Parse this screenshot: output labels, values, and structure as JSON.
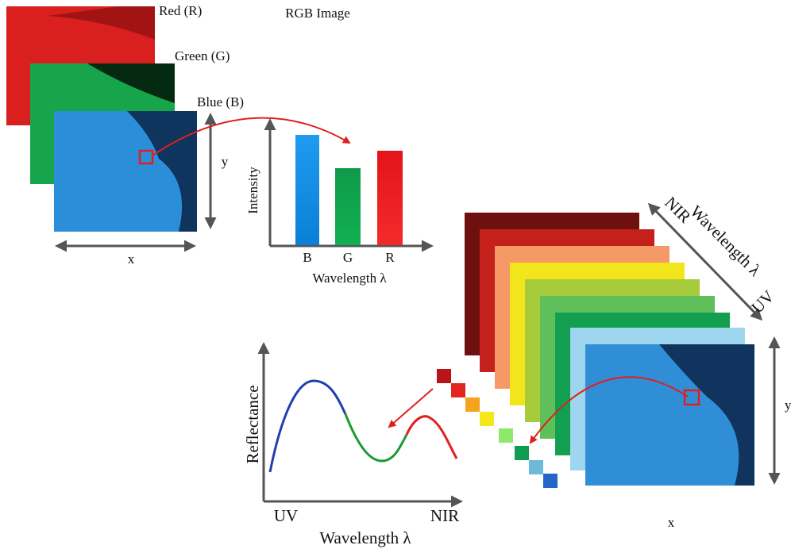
{
  "rgb_panel": {
    "title": "RGB Image",
    "layers": [
      "Red (R)",
      "Green (G)",
      "Blue (B)"
    ],
    "x_label": "x",
    "y_label": "y"
  },
  "intensity_chart": {
    "y_label": "Intensity",
    "categories": [
      "B",
      "G",
      "R"
    ],
    "x_label": "Wavelength λ"
  },
  "hyperspectral_cube": {
    "axis_label": "Wavelength λ",
    "axis_start": "UV",
    "axis_end": "NIR",
    "x_label": "x",
    "y_label": "y"
  },
  "reflectance_chart": {
    "y_label": "Reflectance",
    "x_start": "UV",
    "x_end": "NIR",
    "x_label": "Wavelength λ"
  }
}
